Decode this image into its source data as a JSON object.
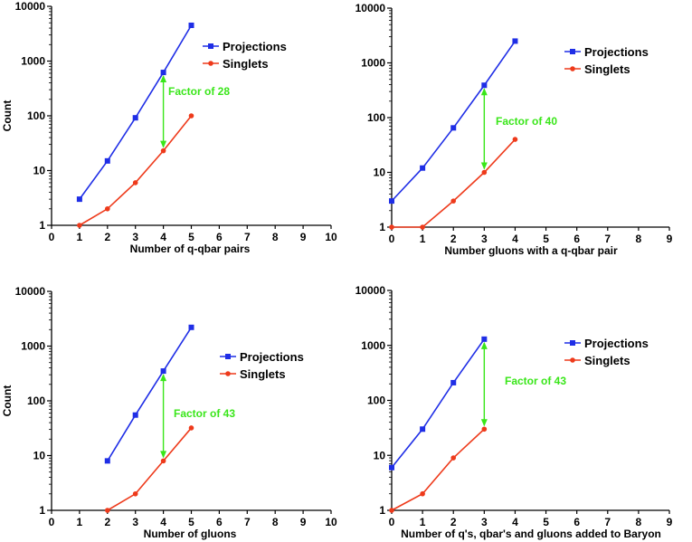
{
  "figure": {
    "colors": {
      "projections": "#1f2ee6",
      "singlets": "#ee3a1b",
      "annotation": "#39e619",
      "axis": "#000000"
    },
    "ylabel_shared": "Count"
  },
  "chart_data": [
    {
      "type": "line",
      "xlabel": "Number of q-qbar pairs",
      "ylabel": "Count",
      "yscale": "log",
      "xlim": [
        0,
        10
      ],
      "ylim": [
        1,
        10000
      ],
      "x_ticks": [
        "0",
        "1",
        "2",
        "3",
        "4",
        "5",
        "6",
        "7",
        "8",
        "9",
        "10"
      ],
      "y_ticks": [
        "1",
        "10",
        "100",
        "1000",
        "10000"
      ],
      "legend": [
        "Projections",
        "Singlets"
      ],
      "legend_position": "top-right",
      "series": [
        {
          "name": "Projections",
          "marker": "square",
          "x": [
            1,
            2,
            3,
            4,
            5
          ],
          "values": [
            3,
            15,
            92,
            620,
            4500
          ]
        },
        {
          "name": "Singlets",
          "marker": "circle",
          "x": [
            1,
            2,
            3,
            4,
            5
          ],
          "values": [
            1,
            2,
            6,
            23,
            100
          ]
        }
      ],
      "annotation": {
        "text": "Factor of 28",
        "x": 4,
        "from": 620,
        "to": 23
      }
    },
    {
      "type": "line",
      "xlabel": "Number gluons with a q-qbar pair",
      "ylabel": "",
      "yscale": "log",
      "xlim": [
        0,
        9
      ],
      "ylim": [
        1,
        10000
      ],
      "x_ticks": [
        "0",
        "1",
        "2",
        "3",
        "4",
        "5",
        "6",
        "7",
        "8",
        "9"
      ],
      "y_ticks": [
        "1",
        "10",
        "100",
        "1000",
        "10000"
      ],
      "legend": [
        "Projections",
        "Singlets"
      ],
      "legend_position": "top-right",
      "series": [
        {
          "name": "Projections",
          "marker": "square",
          "x": [
            0,
            1,
            2,
            3,
            4
          ],
          "values": [
            3,
            12,
            65,
            390,
            2500
          ]
        },
        {
          "name": "Singlets",
          "marker": "circle",
          "x": [
            0,
            1,
            2,
            3,
            4
          ],
          "values": [
            1,
            1,
            3,
            10,
            40
          ]
        }
      ],
      "annotation": {
        "text": "Factor of 40",
        "x": 3,
        "from": 390,
        "to": 10
      }
    },
    {
      "type": "line",
      "xlabel": "Number of gluons",
      "ylabel": "Count",
      "yscale": "log",
      "xlim": [
        0,
        10
      ],
      "ylim": [
        1,
        10000
      ],
      "x_ticks": [
        "0",
        "1",
        "2",
        "3",
        "4",
        "5",
        "6",
        "7",
        "8",
        "9",
        "10"
      ],
      "y_ticks": [
        "1",
        "10",
        "100",
        "1000",
        "10000"
      ],
      "legend": [
        "Projections",
        "Singlets"
      ],
      "legend_position": "right",
      "series": [
        {
          "name": "Projections",
          "marker": "square",
          "x": [
            2,
            3,
            4,
            5
          ],
          "values": [
            8,
            55,
            350,
            2200
          ]
        },
        {
          "name": "Singlets",
          "marker": "circle",
          "x": [
            2,
            3,
            4,
            5
          ],
          "values": [
            1,
            2,
            8,
            32
          ]
        }
      ],
      "annotation": {
        "text": "Factor of 43",
        "x": 4,
        "from": 350,
        "to": 8
      }
    },
    {
      "type": "line",
      "xlabel": "Number of q's, qbar's and gluons added to Baryon",
      "ylabel": "",
      "yscale": "log",
      "xlim": [
        0,
        9
      ],
      "ylim": [
        1,
        10000
      ],
      "x_ticks": [
        "0",
        "1",
        "2",
        "3",
        "4",
        "5",
        "6",
        "7",
        "8",
        "9"
      ],
      "y_ticks": [
        "1",
        "10",
        "100",
        "1000",
        "10000"
      ],
      "legend": [
        "Projections",
        "Singlets"
      ],
      "legend_position": "right",
      "series": [
        {
          "name": "Projections",
          "marker": "square",
          "x": [
            0,
            1,
            2,
            3
          ],
          "values": [
            6,
            30,
            210,
            1300
          ]
        },
        {
          "name": "Singlets",
          "marker": "circle",
          "x": [
            0,
            1,
            2,
            3
          ],
          "values": [
            1,
            2,
            9,
            30
          ]
        }
      ],
      "annotation": {
        "text": "Factor of 43",
        "x": 3,
        "from": 1300,
        "to": 30
      }
    }
  ]
}
